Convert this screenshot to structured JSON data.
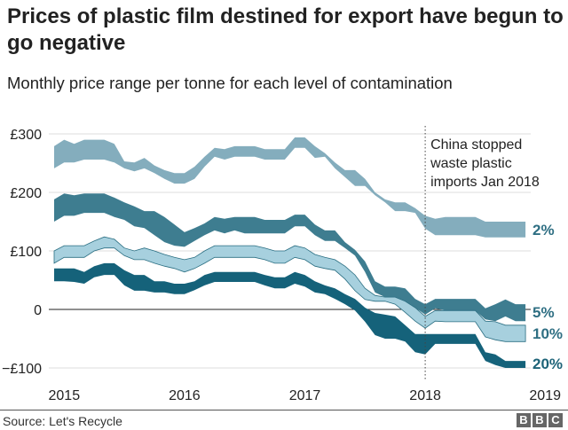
{
  "title": "Prices of plastic film destined for export have begun to go negative",
  "subtitle": "Monthly price range per tonne for each level of contamination",
  "source": "Source: Let's Recycle",
  "logo": [
    "B",
    "B",
    "C"
  ],
  "chart_data": {
    "type": "area",
    "title": "Prices of plastic film destined for export have begun to go negative",
    "subtitle": "Monthly price range per tonne for each level of contamination",
    "xlabel": "",
    "ylabel": "",
    "ylim": [
      -100,
      300
    ],
    "xlim": [
      "2015",
      "2019"
    ],
    "y_ticks": [
      {
        "value": 300,
        "label": "£300"
      },
      {
        "value": 200,
        "label": "£200"
      },
      {
        "value": 100,
        "label": "£100"
      },
      {
        "value": 0,
        "label": "0"
      },
      {
        "value": -100,
        "label": "−£100"
      }
    ],
    "x_ticks": [
      "2015",
      "2016",
      "2017",
      "2018",
      "2019"
    ],
    "grid": true,
    "annotation": {
      "date": "2018-01",
      "lines": [
        "China stopped",
        "waste plastic",
        "imports Jan 2018"
      ]
    },
    "dates": [
      "2014-12",
      "2015-01",
      "2015-02",
      "2015-03",
      "2015-04",
      "2015-05",
      "2015-06",
      "2015-07",
      "2015-08",
      "2015-09",
      "2015-10",
      "2015-11",
      "2015-12",
      "2016-01",
      "2016-02",
      "2016-03",
      "2016-04",
      "2016-05",
      "2016-06",
      "2016-07",
      "2016-08",
      "2016-09",
      "2016-10",
      "2016-11",
      "2016-12",
      "2017-01",
      "2017-02",
      "2017-03",
      "2017-04",
      "2017-05",
      "2017-06",
      "2017-07",
      "2017-08",
      "2017-09",
      "2017-10",
      "2017-11",
      "2017-12",
      "2018-01",
      "2018-02",
      "2018-03",
      "2018-04",
      "2018-05",
      "2018-06",
      "2018-07",
      "2018-08",
      "2018-09",
      "2018-10",
      "2018-11"
    ],
    "series": [
      {
        "name": "2%",
        "color": "#84adbd",
        "label_color": "#2f6f83",
        "high": [
          279,
          290,
          283,
          290,
          290,
          290,
          283,
          253,
          251,
          259,
          246,
          238,
          233,
          233,
          244,
          261,
          276,
          274,
          279,
          279,
          279,
          274,
          274,
          274,
          294,
          294,
          279,
          267,
          251,
          238,
          238,
          223,
          200,
          188,
          183,
          183,
          173,
          160,
          155,
          158,
          158,
          158,
          158,
          150,
          150,
          150,
          150,
          150
        ],
        "low": [
          241,
          251,
          251,
          256,
          256,
          256,
          251,
          241,
          236,
          241,
          233,
          223,
          215,
          215,
          223,
          244,
          261,
          256,
          261,
          261,
          261,
          256,
          256,
          256,
          276,
          276,
          259,
          261,
          241,
          226,
          211,
          211,
          195,
          183,
          168,
          168,
          165,
          138,
          127,
          127,
          127,
          127,
          127,
          123,
          123,
          123,
          123,
          123
        ]
      },
      {
        "name": "5%",
        "color": "#3e7d90",
        "label_color": "#2f6f83",
        "high": [
          188,
          198,
          195,
          198,
          198,
          198,
          191,
          183,
          176,
          168,
          168,
          158,
          145,
          132,
          139,
          147,
          158,
          155,
          158,
          158,
          158,
          153,
          153,
          153,
          162,
          162,
          145,
          135,
          135,
          115,
          102,
          82,
          48,
          39,
          39,
          36,
          18,
          9,
          18,
          18,
          18,
          18,
          18,
          2,
          9,
          17,
          9,
          9
        ],
        "low": [
          150,
          160,
          160,
          165,
          165,
          165,
          158,
          153,
          142,
          139,
          127,
          115,
          109,
          107,
          117,
          127,
          135,
          130,
          135,
          130,
          130,
          130,
          130,
          130,
          142,
          142,
          127,
          117,
          117,
          105,
          92,
          64,
          29,
          21,
          21,
          14,
          3,
          -9,
          2,
          -2,
          -2,
          -2,
          -2,
          -17,
          -20,
          -12,
          -20,
          -20
        ]
      },
      {
        "name": "10%",
        "color": "#a7d0de",
        "stroke": "#2a6e82",
        "label_color": "#2f6f83",
        "high": [
          100,
          109,
          109,
          109,
          117,
          124,
          120,
          105,
          100,
          105,
          100,
          94,
          89,
          85,
          89,
          100,
          109,
          109,
          109,
          109,
          109,
          105,
          100,
          100,
          109,
          105,
          94,
          89,
          85,
          74,
          59,
          36,
          24,
          21,
          21,
          14,
          3,
          -12,
          -2,
          -2,
          -2,
          -2,
          -2,
          -20,
          -21,
          -27,
          -27,
          -27
        ],
        "low": [
          79,
          89,
          89,
          89,
          100,
          105,
          105,
          92,
          85,
          85,
          79,
          74,
          70,
          64,
          70,
          79,
          89,
          89,
          89,
          89,
          89,
          85,
          79,
          79,
          89,
          85,
          74,
          70,
          67,
          52,
          32,
          17,
          14,
          14,
          9,
          -5,
          -20,
          -32,
          -20,
          -21,
          -21,
          -21,
          -21,
          -47,
          -52,
          -55,
          -55,
          -55
        ]
      },
      {
        "name": "20%",
        "color": "#15627a",
        "label_color": "#1d6378",
        "high": [
          70,
          70,
          70,
          64,
          74,
          79,
          79,
          67,
          59,
          59,
          48,
          48,
          44,
          44,
          48,
          59,
          64,
          64,
          64,
          64,
          64,
          59,
          55,
          55,
          64,
          59,
          48,
          41,
          36,
          26,
          18,
          3,
          -6,
          -9,
          -12,
          -27,
          -42,
          -42,
          -42,
          -42,
          -42,
          -42,
          -42,
          -73,
          -77,
          -88,
          -88,
          -88
        ],
        "low": [
          48,
          48,
          47,
          44,
          55,
          59,
          59,
          41,
          32,
          32,
          29,
          29,
          26,
          26,
          33,
          41,
          47,
          47,
          47,
          47,
          47,
          41,
          36,
          36,
          44,
          39,
          29,
          26,
          18,
          9,
          -2,
          -21,
          -44,
          -50,
          -50,
          -55,
          -73,
          -77,
          -59,
          -59,
          -59,
          -59,
          -59,
          -88,
          -95,
          -100,
          -100,
          -100
        ]
      }
    ]
  }
}
